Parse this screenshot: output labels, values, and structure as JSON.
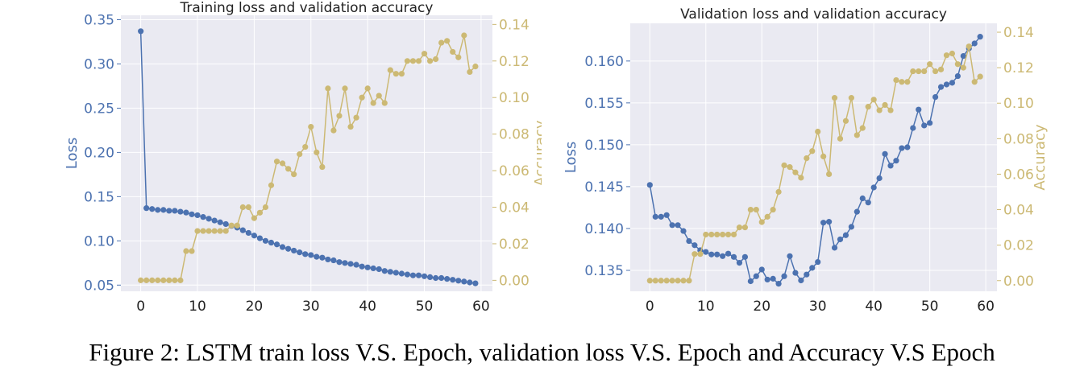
{
  "caption": "Figure 2: LSTM train loss V.S. Epoch, validation loss V.S. Epoch and Accuracy V.S Epoch",
  "colors": {
    "loss": "#4c72b0",
    "accuracy": "#ccb974",
    "plot_bg": "#eaeaf2",
    "grid": "#ffffff",
    "tick_text": "#222222"
  },
  "chart_data": [
    {
      "type": "line",
      "title": "Training loss and validation accuracy",
      "xlabel": "",
      "ylabel": "Loss",
      "y2label": "Accuracy",
      "xlim": [
        -3.5,
        62
      ],
      "ylim": [
        0.043,
        0.355
      ],
      "y2lim": [
        -0.006,
        0.145
      ],
      "xticks": [
        0,
        10,
        20,
        30,
        40,
        50,
        60
      ],
      "yticks": [
        0.05,
        0.1,
        0.15,
        0.2,
        0.25,
        0.3,
        0.35
      ],
      "yticklabels": [
        "0.05",
        "0.10",
        "0.15",
        "0.20",
        "0.25",
        "0.30",
        "0.35"
      ],
      "y2ticks": [
        0.0,
        0.02,
        0.04,
        0.06,
        0.08,
        0.1,
        0.12,
        0.14
      ],
      "y2ticklabels": [
        "0.00",
        "0.02",
        "0.04",
        "0.06",
        "0.08",
        "0.10",
        "0.12",
        "0.14"
      ],
      "grid": true,
      "x": [
        0,
        1,
        2,
        3,
        4,
        5,
        6,
        7,
        8,
        9,
        10,
        11,
        12,
        13,
        14,
        15,
        16,
        17,
        18,
        19,
        20,
        21,
        22,
        23,
        24,
        25,
        26,
        27,
        28,
        29,
        30,
        31,
        32,
        33,
        34,
        35,
        36,
        37,
        38,
        39,
        40,
        41,
        42,
        43,
        44,
        45,
        46,
        47,
        48,
        49,
        50,
        51,
        52,
        53,
        54,
        55,
        56,
        57,
        58,
        59
      ],
      "series": [
        {
          "name": "Loss",
          "axis": "left",
          "values": [
            0.337,
            0.137,
            0.136,
            0.135,
            0.135,
            0.134,
            0.134,
            0.133,
            0.132,
            0.13,
            0.129,
            0.127,
            0.125,
            0.123,
            0.121,
            0.119,
            0.117,
            0.115,
            0.112,
            0.109,
            0.106,
            0.103,
            0.1,
            0.098,
            0.096,
            0.093,
            0.091,
            0.089,
            0.087,
            0.085,
            0.084,
            0.082,
            0.081,
            0.079,
            0.078,
            0.076,
            0.075,
            0.074,
            0.073,
            0.071,
            0.07,
            0.069,
            0.068,
            0.066,
            0.065,
            0.064,
            0.063,
            0.062,
            0.061,
            0.061,
            0.06,
            0.059,
            0.058,
            0.058,
            0.057,
            0.056,
            0.055,
            0.054,
            0.053,
            0.052
          ]
        },
        {
          "name": "Accuracy",
          "axis": "right",
          "values": [
            0.0,
            0.0,
            0.0,
            0.0,
            0.0,
            0.0,
            0.0,
            0.0,
            0.016,
            0.016,
            0.027,
            0.027,
            0.027,
            0.027,
            0.027,
            0.027,
            0.03,
            0.03,
            0.04,
            0.04,
            0.034,
            0.037,
            0.04,
            0.052,
            0.065,
            0.064,
            0.061,
            0.058,
            0.069,
            0.073,
            0.084,
            0.07,
            0.062,
            0.105,
            0.082,
            0.09,
            0.105,
            0.084,
            0.089,
            0.1,
            0.105,
            0.097,
            0.101,
            0.097,
            0.115,
            0.113,
            0.113,
            0.12,
            0.12,
            0.12,
            0.124,
            0.12,
            0.121,
            0.13,
            0.131,
            0.125,
            0.122,
            0.134,
            0.114,
            0.117
          ]
        }
      ]
    },
    {
      "type": "line",
      "title": "Validation loss and validation accuracy",
      "xlabel": "",
      "ylabel": "Loss",
      "y2label": "Accuracy",
      "xlim": [
        -3.5,
        62
      ],
      "ylim": [
        0.1325,
        0.1645
      ],
      "y2lim": [
        -0.006,
        0.145
      ],
      "xticks": [
        0,
        10,
        20,
        30,
        40,
        50,
        60
      ],
      "yticks": [
        0.135,
        0.14,
        0.145,
        0.15,
        0.155,
        0.16
      ],
      "yticklabels": [
        "0.135",
        "0.140",
        "0.145",
        "0.150",
        "0.155",
        "0.160"
      ],
      "y2ticks": [
        0.0,
        0.02,
        0.04,
        0.06,
        0.08,
        0.1,
        0.12,
        0.14
      ],
      "y2ticklabels": [
        "0.00",
        "0.02",
        "0.04",
        "0.06",
        "0.08",
        "0.10",
        "0.12",
        "0.14"
      ],
      "grid": true,
      "x": [
        0,
        1,
        2,
        3,
        4,
        5,
        6,
        7,
        8,
        9,
        10,
        11,
        12,
        13,
        14,
        15,
        16,
        17,
        18,
        19,
        20,
        21,
        22,
        23,
        24,
        25,
        26,
        27,
        28,
        29,
        30,
        31,
        32,
        33,
        34,
        35,
        36,
        37,
        38,
        39,
        40,
        41,
        42,
        43,
        44,
        45,
        46,
        47,
        48,
        49,
        50,
        51,
        52,
        53,
        54,
        55,
        56,
        57,
        58,
        59
      ],
      "series": [
        {
          "name": "Loss",
          "axis": "left",
          "values": [
            0.1452,
            0.1414,
            0.1414,
            0.1416,
            0.1404,
            0.1404,
            0.1397,
            0.1385,
            0.138,
            0.1374,
            0.1372,
            0.1369,
            0.1369,
            0.1367,
            0.137,
            0.1366,
            0.1359,
            0.1366,
            0.1337,
            0.1343,
            0.1351,
            0.1339,
            0.134,
            0.1334,
            0.1343,
            0.1367,
            0.1347,
            0.1338,
            0.1345,
            0.1353,
            0.136,
            0.1407,
            0.1408,
            0.1377,
            0.1387,
            0.1392,
            0.1402,
            0.142,
            0.1436,
            0.1431,
            0.1449,
            0.146,
            0.1489,
            0.1475,
            0.1481,
            0.1496,
            0.1497,
            0.152,
            0.1542,
            0.1523,
            0.1526,
            0.1557,
            0.1569,
            0.1572,
            0.1574,
            0.1582,
            0.1606,
            0.1615,
            0.1621,
            0.1629
          ]
        },
        {
          "name": "Accuracy",
          "axis": "right",
          "values": [
            0.0,
            0.0,
            0.0,
            0.0,
            0.0,
            0.0,
            0.0,
            0.0,
            0.015,
            0.015,
            0.026,
            0.026,
            0.026,
            0.026,
            0.026,
            0.026,
            0.03,
            0.03,
            0.04,
            0.04,
            0.033,
            0.036,
            0.04,
            0.05,
            0.065,
            0.064,
            0.061,
            0.058,
            0.069,
            0.073,
            0.084,
            0.07,
            0.06,
            0.103,
            0.08,
            0.09,
            0.103,
            0.082,
            0.086,
            0.098,
            0.102,
            0.096,
            0.099,
            0.096,
            0.113,
            0.112,
            0.112,
            0.118,
            0.118,
            0.118,
            0.122,
            0.118,
            0.119,
            0.127,
            0.128,
            0.122,
            0.12,
            0.132,
            0.112,
            0.115
          ]
        }
      ]
    }
  ]
}
